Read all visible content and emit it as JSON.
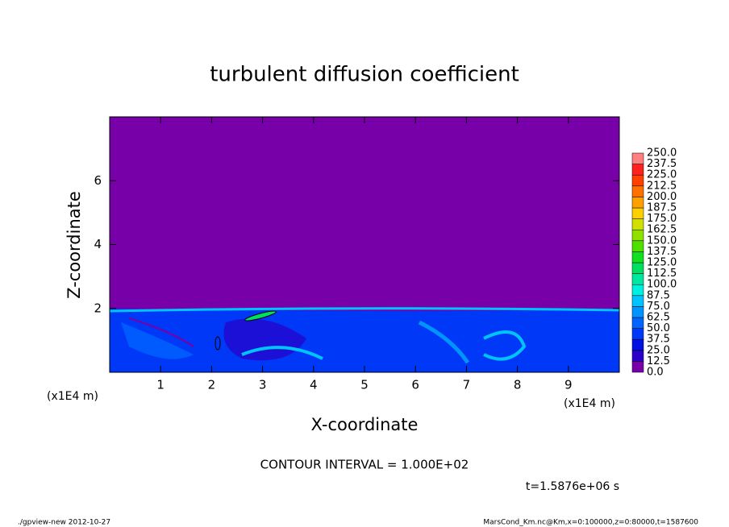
{
  "chart_data": {
    "type": "contour",
    "title": "turbulent diffusion coefficient",
    "xlabel": "X-coordinate",
    "ylabel": "Z-coordinate",
    "axis_unit": "(x1E4 m)",
    "xlim": [
      0,
      10
    ],
    "ylim": [
      0,
      8
    ],
    "xticks": [
      1,
      2,
      3,
      4,
      5,
      6,
      7,
      8,
      9
    ],
    "yticks": [
      2,
      4,
      6
    ],
    "colorbar_levels": [
      {
        "value": 0,
        "label": "0.0"
      },
      {
        "value": 12.5,
        "label": "12.5"
      },
      {
        "value": 25,
        "label": "25.0"
      },
      {
        "value": 37.5,
        "label": "37.5"
      },
      {
        "value": 50,
        "label": "50.0"
      },
      {
        "value": 62.5,
        "label": "62.5"
      },
      {
        "value": 75,
        "label": "75.0"
      },
      {
        "value": 87.5,
        "label": "87.5"
      },
      {
        "value": 100,
        "label": "100.0"
      },
      {
        "value": 112.5,
        "label": "112.5"
      },
      {
        "value": 125,
        "label": "125.0"
      },
      {
        "value": 137.5,
        "label": "137.5"
      },
      {
        "value": 150,
        "label": "150.0"
      },
      {
        "value": 162.5,
        "label": "162.5"
      },
      {
        "value": 175,
        "label": "175.0"
      },
      {
        "value": 187.5,
        "label": "187.5"
      },
      {
        "value": 200,
        "label": "200.0"
      },
      {
        "value": 212.5,
        "label": "212.5"
      },
      {
        "value": 225,
        "label": "225.0"
      },
      {
        "value": 237.5,
        "label": "237.5"
      },
      {
        "value": 250,
        "label": "250.0"
      }
    ],
    "colorbar_colors": [
      "#7800a8",
      "#2a00c8",
      "#0010e0",
      "#0038f8",
      "#0064ff",
      "#0094ff",
      "#00c4ff",
      "#00f0e0",
      "#00e8a0",
      "#00e060",
      "#10e020",
      "#50e000",
      "#90e000",
      "#d0e000",
      "#ffd000",
      "#ffa000",
      "#ff7000",
      "#ff4000",
      "#ff2020",
      "#ff8080"
    ],
    "contour_interval": "CONTOUR INTERVAL = 1.000E+02",
    "time_label": "t=1.5876e+06 s",
    "footer_left": "./gpview-new  2012-10-27",
    "footer_right": "MarsCond_Km.nc@Km,x=0:100000,z=0:80000,t=1587600"
  }
}
